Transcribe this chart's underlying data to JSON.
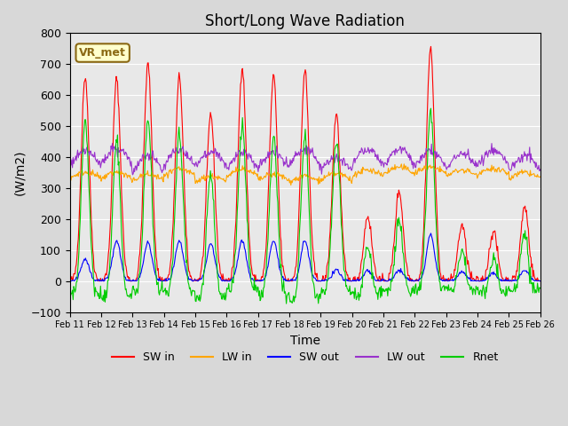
{
  "title": "Short/Long Wave Radiation",
  "ylabel": "(W/m2)",
  "xlabel": "Time",
  "ylim": [
    -100,
    800
  ],
  "background_color": "#e8e8e8",
  "label_box": "VR_met",
  "series_colors": {
    "SW_in": "#ff0000",
    "LW_in": "#ffa500",
    "SW_out": "#0000ff",
    "LW_out": "#9932cc",
    "Rnet": "#00cc00"
  },
  "legend_labels": [
    "SW in",
    "LW in",
    "SW out",
    "LW out",
    "Rnet"
  ],
  "xtick_labels": [
    "Feb 11",
    "Feb 12",
    "Feb 13",
    "Feb 14",
    "Feb 15",
    "Feb 16",
    "Feb 17",
    "Feb 18",
    "Feb 19",
    "Feb 20",
    "Feb 21",
    "Feb 22",
    "Feb 23",
    "Feb 24",
    "Feb 25",
    "Feb 26"
  ],
  "n_days": 15,
  "pts_per_day": 48
}
